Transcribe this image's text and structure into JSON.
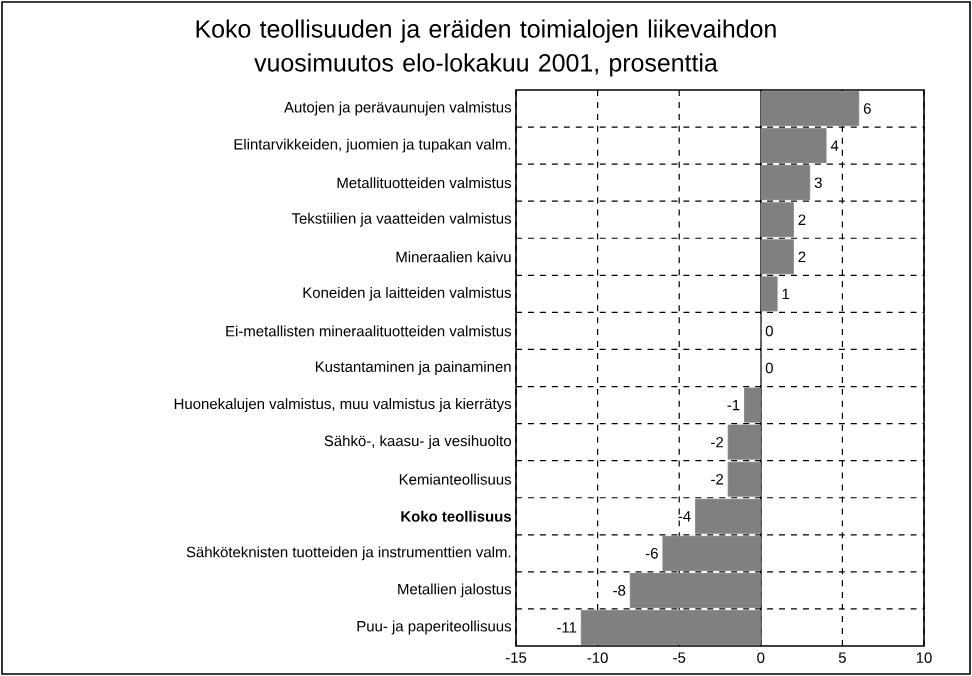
{
  "chart_data": {
    "type": "bar",
    "orientation": "horizontal",
    "title": "Koko teollisuuden ja eräiden toimialojen liikevaihdon vuosimuutos elo-lokakuu 2001, prosenttia",
    "categories": [
      "Autojen ja perävaunujen valmistus",
      "Elintarvikkeiden, juomien ja tupakan valm.",
      "Metallituotteiden valmistus",
      "Tekstiilien ja vaatteiden valmistus",
      "Mineraalien kaivu",
      "Koneiden ja laitteiden valmistus",
      "Ei-metallisten mineraalituotteiden valmistus",
      "Kustantaminen ja painaminen",
      "Huonekalujen valmistus, muu valmistus ja kierrätys",
      "Sähkö-, kaasu- ja vesihuolto",
      "Kemianteollisuus",
      "**Koko teollisuus**",
      "Sähköteknisten tuotteiden ja instrumenttien valm.",
      "Metallien jalostus",
      "Puu- ja paperiteollisuus"
    ],
    "values": [
      6,
      4,
      3,
      2,
      2,
      1,
      0,
      0,
      -1,
      -2,
      -2,
      -4,
      -6,
      -8,
      -11
    ],
    "color": "#808080",
    "xlim": [
      -15,
      10
    ],
    "xticks": [
      -15,
      -10,
      -5,
      0,
      5,
      10
    ],
    "grid": true,
    "data_labels": true
  }
}
